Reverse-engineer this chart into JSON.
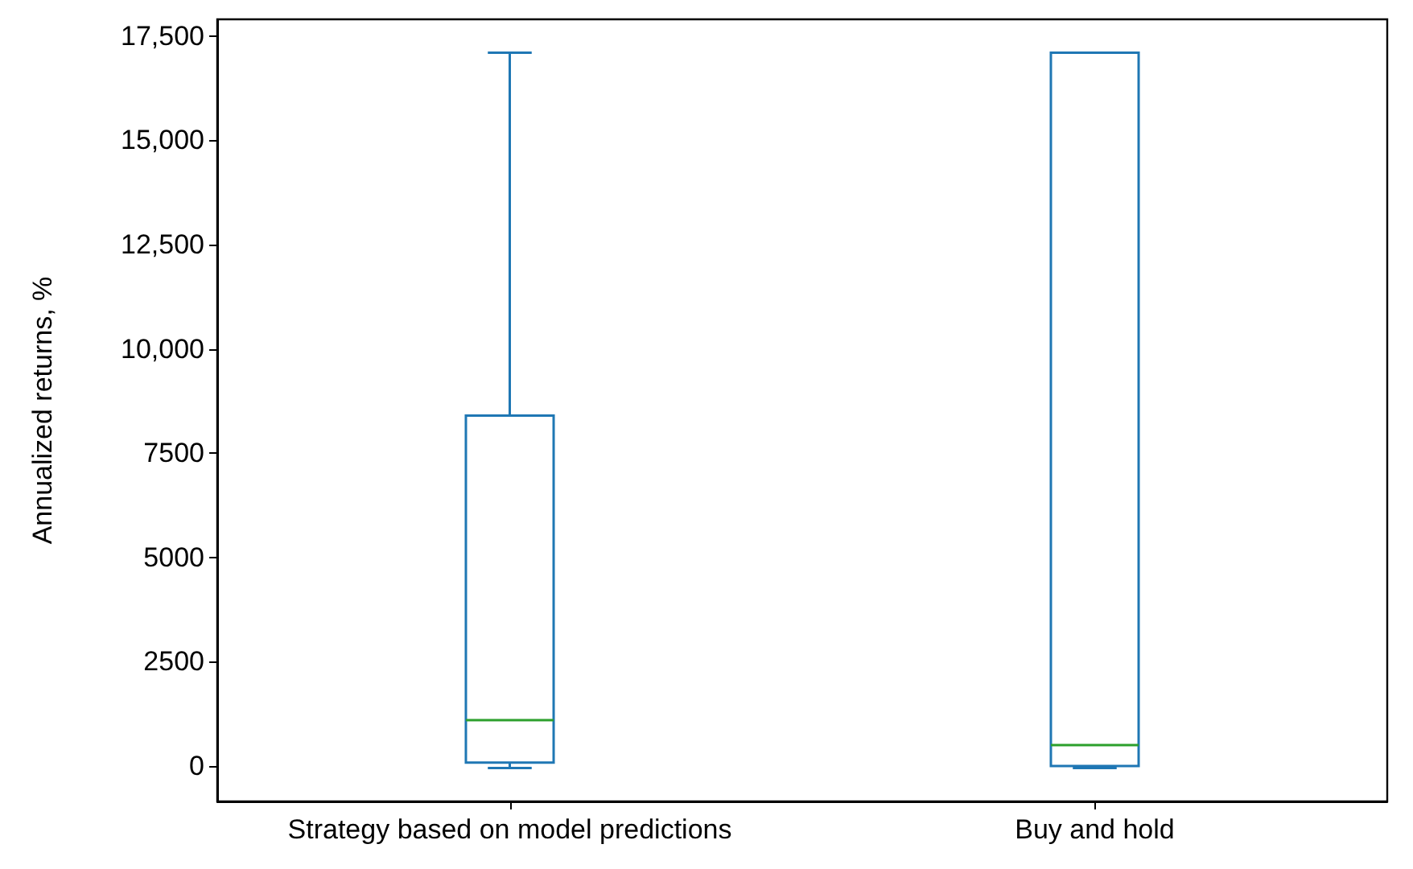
{
  "chart_data": {
    "type": "box",
    "ylabel": "Annualized returns, %",
    "categories": [
      "Strategy based on model predictions",
      "Buy and hold"
    ],
    "series": [
      {
        "color": "#1f77b4",
        "boxes": [
          {
            "low": -50,
            "q1": 80,
            "median": 1100,
            "q3": 8400,
            "high": 17100
          },
          {
            "low": -50,
            "q1": 0,
            "median": 500,
            "q3": 17100,
            "high": 17100
          }
        ]
      }
    ],
    "ylim": [
      -850,
      17900
    ],
    "yticks": [
      0,
      2500,
      5000,
      7500,
      {
        "value": 10000,
        "label": "10,000"
      },
      {
        "value": 12500,
        "label": "12,500"
      },
      {
        "value": 15000,
        "label": "15,000"
      },
      {
        "value": 17500,
        "label": "17,500"
      }
    ],
    "grid": false
  }
}
